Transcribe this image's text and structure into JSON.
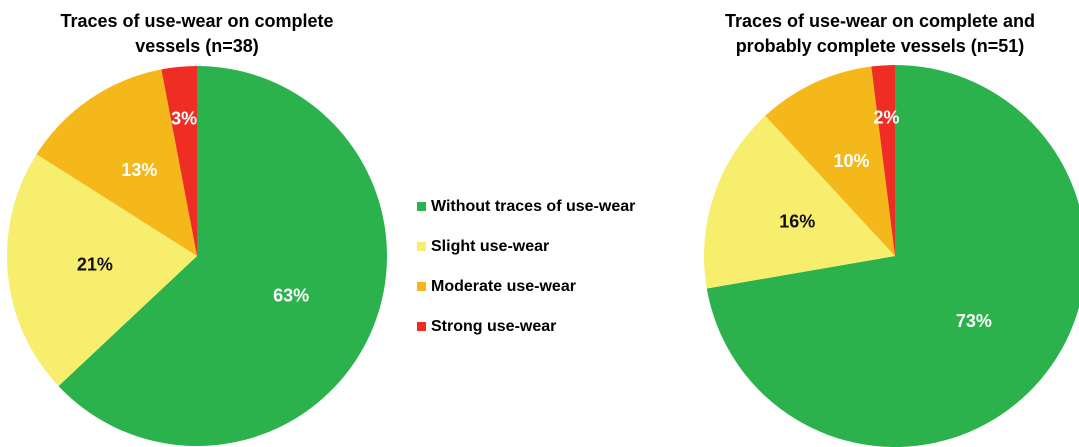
{
  "chart_data": [
    {
      "type": "pie",
      "title": [
        "Traces of use-wear on complete",
        "vessels (n=38)"
      ],
      "values": [
        63,
        21,
        13,
        3
      ],
      "value_labels": [
        "63%",
        "21%",
        "13%",
        "3%"
      ]
    },
    {
      "type": "pie",
      "title": [
        "Traces of use-wear on complete and",
        "probably complete vessels (n=51)"
      ],
      "values": [
        73,
        16,
        10,
        2
      ],
      "value_labels": [
        "73%",
        "16%",
        "10%",
        "2%"
      ]
    }
  ],
  "legend": {
    "categories": [
      "Without traces of use-wear",
      "Slight use-wear",
      "Moderate use-wear",
      "Strong use-wear"
    ],
    "colors": [
      "#2bb24c",
      "#f7ee6e",
      "#f5b81a",
      "#ee2e24"
    ]
  }
}
